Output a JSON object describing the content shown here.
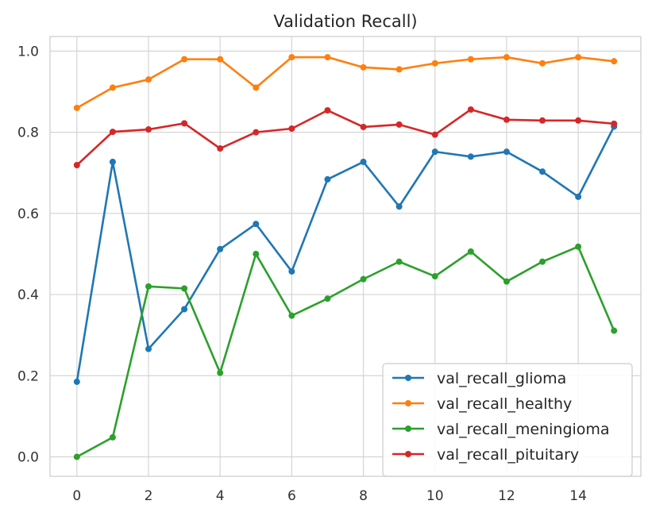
{
  "chart_data": {
    "type": "line",
    "title": "Validation Recall)",
    "xlabel": "",
    "ylabel": "",
    "x": [
      0,
      1,
      2,
      3,
      4,
      5,
      6,
      7,
      8,
      9,
      10,
      11,
      12,
      13,
      14,
      15
    ],
    "xlim": [
      -0.75,
      15.75
    ],
    "ylim": [
      -0.048,
      1.036
    ],
    "x_ticks": [
      0,
      2,
      4,
      6,
      8,
      10,
      12,
      14
    ],
    "y_ticks": [
      0.0,
      0.2,
      0.4,
      0.6,
      0.8,
      1.0
    ],
    "x_tick_labels": [
      "0",
      "2",
      "4",
      "6",
      "8",
      "10",
      "12",
      "14"
    ],
    "y_tick_labels": [
      "0.0",
      "0.2",
      "0.4",
      "0.6",
      "0.8",
      "1.0"
    ],
    "grid": true,
    "legend_position": "bottom-right",
    "series": [
      {
        "name": "val_recall_glioma",
        "color": "#1f77b4",
        "values": [
          0.185,
          0.727,
          0.266,
          0.364,
          0.512,
          0.574,
          0.457,
          0.684,
          0.727,
          0.617,
          0.752,
          0.74,
          0.752,
          0.703,
          0.641,
          0.814
        ]
      },
      {
        "name": "val_recall_healthy",
        "color": "#ff7f0e",
        "values": [
          0.86,
          0.91,
          0.93,
          0.98,
          0.98,
          0.91,
          0.985,
          0.985,
          0.96,
          0.955,
          0.97,
          0.98,
          0.985,
          0.97,
          0.985,
          0.975
        ]
      },
      {
        "name": "val_recall_meningioma",
        "color": "#2ca02c",
        "values": [
          0.0,
          0.048,
          0.42,
          0.415,
          0.207,
          0.5,
          0.348,
          0.39,
          0.438,
          0.481,
          0.445,
          0.506,
          0.432,
          0.481,
          0.518,
          0.311
        ]
      },
      {
        "name": "val_recall_pituitary",
        "color": "#d62728",
        "values": [
          0.719,
          0.801,
          0.807,
          0.822,
          0.76,
          0.8,
          0.809,
          0.854,
          0.813,
          0.819,
          0.794,
          0.856,
          0.831,
          0.829,
          0.829,
          0.821
        ]
      }
    ]
  }
}
